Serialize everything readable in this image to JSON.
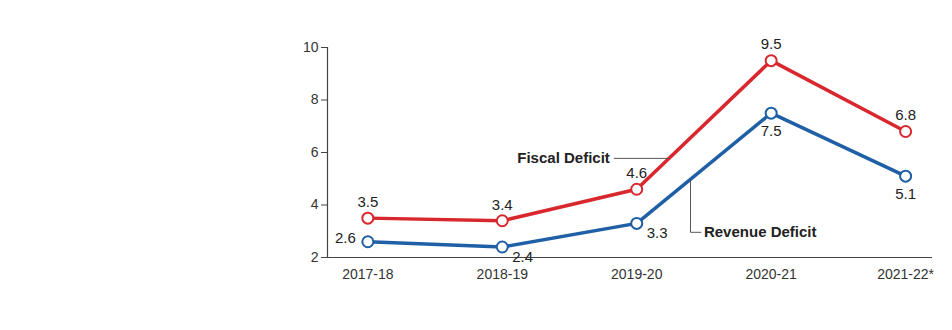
{
  "chart_data": {
    "type": "line",
    "categories": [
      "2017-18",
      "2018-19",
      "2019-20",
      "2020-21",
      "2021-22*"
    ],
    "series": [
      {
        "name": "Fiscal Deficit",
        "color": "#d9272e",
        "values": [
          3.5,
          3.4,
          4.6,
          9.5,
          6.8
        ],
        "marker": "circle",
        "line_style": "solid"
      },
      {
        "name": "Revenue Deficit",
        "color": "#1f5fa6",
        "values": [
          2.6,
          2.4,
          3.3,
          7.5,
          5.1
        ],
        "marker": "circle",
        "line_style": "solid"
      }
    ],
    "ylim": [
      2,
      10
    ],
    "yticks": [
      2,
      4,
      6,
      8,
      10
    ],
    "grid": false,
    "data_labels": true
  }
}
